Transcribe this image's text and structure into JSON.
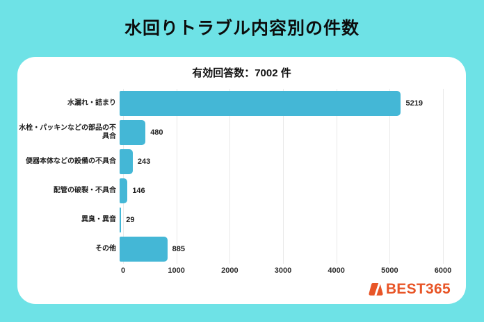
{
  "page": {
    "title": "水回りトラブル内容別の件数",
    "background_color": "#6EE2E6"
  },
  "chart_data": {
    "type": "bar",
    "orientation": "horizontal",
    "subtitle": "有効回答数：7002 件",
    "categories": [
      "水漏れ・詰まり",
      "水栓・パッキンなどの部品の不具合",
      "便器本体などの設備の不具合",
      "配管の破裂・不具合",
      "異臭・異音",
      "その他"
    ],
    "values": [
      5219,
      480,
      243,
      146,
      29,
      885
    ],
    "xlim": [
      0,
      6000
    ],
    "xticks": [
      0,
      1000,
      2000,
      3000,
      4000,
      5000,
      6000
    ],
    "bar_color": "#44B7D6",
    "gridline_color": "#e9e9e9",
    "grid": true,
    "legend": false,
    "value_labels": true
  },
  "logo": {
    "text": "BEST365",
    "color": "#E85527",
    "icon": "best365-trapezoid-icon"
  }
}
